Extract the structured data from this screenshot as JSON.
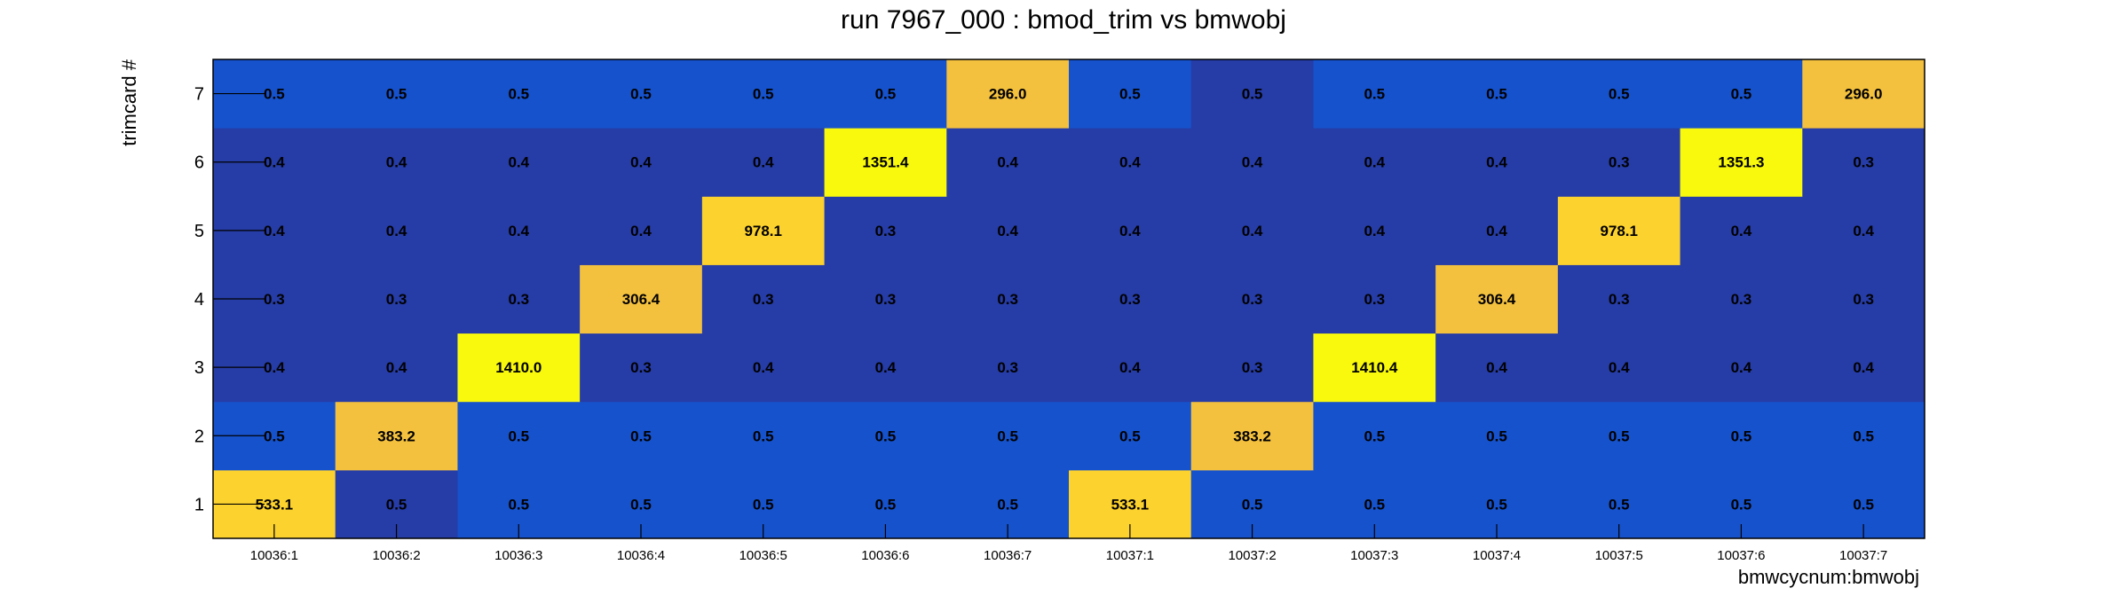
{
  "chart_data": {
    "type": "heatmap",
    "title": "run 7967_000 : bmod_trim vs bmwobj",
    "xlabel": "bmwcycnum:bmwobj",
    "ylabel": "trimcard #",
    "x_categories": [
      "10036:1",
      "10036:2",
      "10036:3",
      "10036:4",
      "10036:5",
      "10036:6",
      "10036:7",
      "10037:1",
      "10037:2",
      "10037:3",
      "10037:4",
      "10037:5",
      "10037:6",
      "10037:7"
    ],
    "y_categories": [
      "1",
      "2",
      "3",
      "4",
      "5",
      "6",
      "7"
    ],
    "values": [
      [
        "533.1",
        "0.5",
        "0.5",
        "0.5",
        "0.5",
        "0.5",
        "0.5",
        "533.1",
        "0.5",
        "0.5",
        "0.5",
        "0.5",
        "0.5",
        "0.5"
      ],
      [
        "0.5",
        "383.2",
        "0.5",
        "0.5",
        "0.5",
        "0.5",
        "0.5",
        "0.5",
        "383.2",
        "0.5",
        "0.5",
        "0.5",
        "0.5",
        "0.5"
      ],
      [
        "0.4",
        "0.4",
        "1410.0",
        "0.3",
        "0.4",
        "0.4",
        "0.3",
        "0.4",
        "0.3",
        "1410.4",
        "0.4",
        "0.4",
        "0.4",
        "0.4"
      ],
      [
        "0.3",
        "0.3",
        "0.3",
        "306.4",
        "0.3",
        "0.3",
        "0.3",
        "0.3",
        "0.3",
        "0.3",
        "306.4",
        "0.3",
        "0.3",
        "0.3"
      ],
      [
        "0.4",
        "0.4",
        "0.4",
        "0.4",
        "978.1",
        "0.3",
        "0.4",
        "0.4",
        "0.4",
        "0.4",
        "0.4",
        "978.1",
        "0.4",
        "0.4"
      ],
      [
        "0.4",
        "0.4",
        "0.4",
        "0.4",
        "0.4",
        "1351.4",
        "0.4",
        "0.4",
        "0.4",
        "0.4",
        "0.4",
        "0.3",
        "1351.3",
        "0.3"
      ],
      [
        "0.5",
        "0.5",
        "0.5",
        "0.5",
        "0.5",
        "0.5",
        "296.0",
        "0.5",
        "0.5",
        "0.5",
        "0.5",
        "0.5",
        "0.5",
        "296.0"
      ]
    ],
    "colors": {
      "dark_blue": "#263ca6",
      "blue": "#1652cc",
      "orange": "#f4c13f",
      "gold": "#fcd22e",
      "yellow": "#f9f90d"
    },
    "grid": false,
    "legend": "none"
  }
}
